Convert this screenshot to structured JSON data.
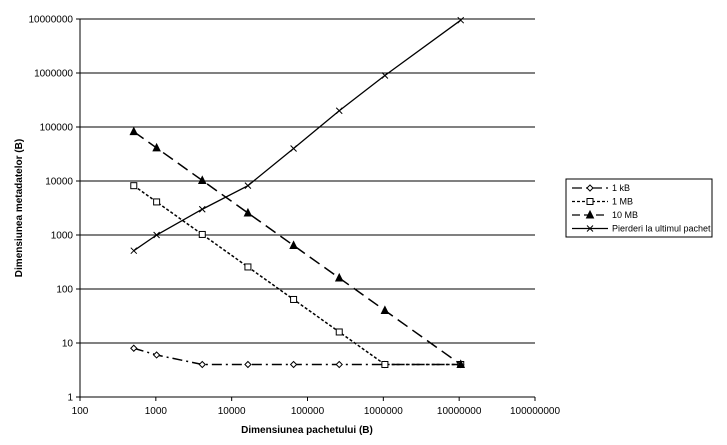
{
  "chart_data": {
    "type": "line",
    "xlabel": "Dimensiunea pachetului (B)",
    "ylabel": "Dimensiunea metadatelor (B)",
    "x_scale": "log",
    "y_scale": "log",
    "xlim": [
      100,
      100000000
    ],
    "ylim": [
      1,
      10000000
    ],
    "x_ticks": [
      "100",
      "1000",
      "10000",
      "100000",
      "1000000",
      "10000000",
      "100000000"
    ],
    "y_ticks": [
      "1",
      "10",
      "100",
      "1000",
      "10000",
      "100000",
      "1000000",
      "10000000"
    ],
    "grid": "horizontal",
    "legend_position": "right",
    "series": [
      {
        "name": "1 kB",
        "marker": "diamond-open",
        "line": "dash-dot",
        "color": "#000000",
        "points": [
          [
            512,
            8
          ],
          [
            1024,
            6
          ],
          [
            4096,
            4
          ],
          [
            16384,
            4
          ],
          [
            65536,
            4
          ],
          [
            262144,
            4
          ],
          [
            1048576,
            4
          ],
          [
            10485760,
            4
          ]
        ]
      },
      {
        "name": "1 MB",
        "marker": "square-open",
        "line": "dotted",
        "color": "#000000",
        "points": [
          [
            512,
            8192
          ],
          [
            1024,
            4096
          ],
          [
            4096,
            1024
          ],
          [
            16384,
            256
          ],
          [
            65536,
            64
          ],
          [
            262144,
            16
          ],
          [
            1048576,
            4
          ],
          [
            10485760,
            4
          ]
        ]
      },
      {
        "name": "10 MB",
        "marker": "triangle-filled",
        "line": "long-dash",
        "color": "#000000",
        "points": [
          [
            512,
            81920
          ],
          [
            1024,
            40960
          ],
          [
            4096,
            10240
          ],
          [
            16384,
            2560
          ],
          [
            65536,
            640
          ],
          [
            262144,
            160
          ],
          [
            1048576,
            40
          ],
          [
            10485760,
            4
          ]
        ]
      },
      {
        "name": "Pierderi la ultimul pachet",
        "marker": "x",
        "line": "solid",
        "color": "#000000",
        "points": [
          [
            512,
            512
          ],
          [
            1024,
            1000
          ],
          [
            4096,
            3000
          ],
          [
            16384,
            8200
          ],
          [
            65536,
            40000
          ],
          [
            262144,
            200000
          ],
          [
            1048576,
            900000
          ],
          [
            10485760,
            9500000
          ]
        ]
      }
    ]
  }
}
